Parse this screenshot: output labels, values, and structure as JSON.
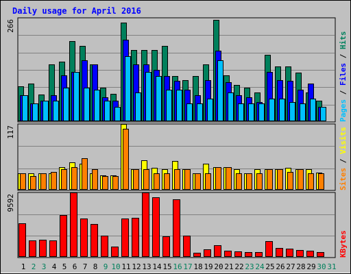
{
  "chart_data": {
    "type": "bar",
    "title": "Daily usage for April 2016",
    "x": [
      "1",
      "2",
      "3",
      "4",
      "5",
      "6",
      "7",
      "8",
      "9",
      "10",
      "11",
      "12",
      "13",
      "14",
      "15",
      "16",
      "17",
      "18",
      "19",
      "20",
      "21",
      "22",
      "23",
      "24",
      "25",
      "26",
      "27",
      "28",
      "29",
      "30",
      "31"
    ],
    "weekend_days": [
      "2",
      "3",
      "9",
      "10",
      "16",
      "17",
      "23",
      "24",
      "30",
      "31"
    ],
    "grid": true,
    "colors": {
      "background": "#c0c0c0",
      "plot": "#c0c0c0",
      "title": "#0000ff",
      "hits": "#00805c",
      "files": "#0000ff",
      "pages": "#00c0ff",
      "visits": "#ffff00",
      "sites": "#ff8000",
      "kbytes": "#ff0000",
      "weekday_label": "#000000",
      "weekend_label": "#00805c"
    },
    "panels": [
      {
        "name": "hits-files-pages",
        "ymax": 266,
        "ymax_label": "266",
        "legend": [
          {
            "text": "Pages",
            "color": "#00c0ff"
          },
          {
            "text": " / ",
            "color": "#000000"
          },
          {
            "text": "Files",
            "color": "#0000ff"
          },
          {
            "text": " / ",
            "color": "#000000"
          },
          {
            "text": "Hits",
            "color": "#00805c"
          }
        ],
        "series": [
          {
            "name": "Hits",
            "color": "#00805c",
            "values": [
              88,
              96,
              68,
              146,
              152,
              206,
              194,
              146,
              85,
              70,
              254,
              183,
              183,
              183,
              194,
              115,
              105,
              115,
              146,
              260,
              117,
              92,
              86,
              73,
              171,
              140,
              140,
              124,
              73,
              51,
              0
            ]
          },
          {
            "name": "Files",
            "color": "#0000ff",
            "values": [
              65,
              44,
              51,
              65,
              117,
              126,
              156,
              146,
              60,
              51,
              210,
              146,
              146,
              132,
              115,
              103,
              80,
              65,
              105,
              180,
              100,
              65,
              60,
              48,
              126,
              105,
              103,
              80,
              95,
              36,
              0
            ]
          },
          {
            "name": "Pages",
            "color": "#00c0ff",
            "values": [
              65,
              44,
              51,
              51,
              85,
              126,
              85,
              80,
              51,
              36,
              166,
              73,
              126,
              115,
              80,
              80,
              44,
              44,
              56,
              156,
              73,
              44,
              44,
              44,
              56,
              56,
              48,
              44,
              56,
              36,
              0
            ]
          }
        ]
      },
      {
        "name": "visits-sites",
        "ymax": 117,
        "ymax_label": "117",
        "legend": [
          {
            "text": "Sites",
            "color": "#ff8000"
          },
          {
            "text": " / ",
            "color": "#000000"
          },
          {
            "text": "Visits",
            "color": "#ffff00"
          }
        ],
        "series": [
          {
            "name": "Visits",
            "color": "#ffff00",
            "values": [
              28,
              28,
              28,
              28,
              40,
              48,
              45,
              28,
              25,
              25,
              117,
              36,
              52,
              38,
              36,
              50,
              36,
              28,
              45,
              40,
              40,
              36,
              28,
              36,
              36,
              36,
              38,
              36,
              36,
              30,
              0
            ]
          },
          {
            "name": "Sites",
            "color": "#ff8000",
            "values": [
              28,
              24,
              28,
              31,
              36,
              40,
              55,
              36,
              24,
              24,
              108,
              36,
              36,
              28,
              28,
              36,
              36,
              28,
              28,
              40,
              40,
              28,
              28,
              28,
              36,
              36,
              31,
              36,
              28,
              28,
              0
            ]
          }
        ]
      },
      {
        "name": "kbytes",
        "ymax": 9592,
        "ymax_label": "9592",
        "legend": [
          {
            "text": "KBytes",
            "color": "#ff0000"
          }
        ],
        "series": [
          {
            "name": "KBytes",
            "color": "#ff0000",
            "values": [
              4900,
              2400,
              2500,
              2400,
              6200,
              9592,
              5700,
              4800,
              3100,
              1400,
              5700,
              5800,
              9592,
              8900,
              3000,
              8600,
              3100,
              500,
              1000,
              1700,
              800,
              700,
              600,
              600,
              2300,
              1200,
              1100,
              900,
              800,
              600,
              0
            ]
          }
        ]
      }
    ]
  }
}
